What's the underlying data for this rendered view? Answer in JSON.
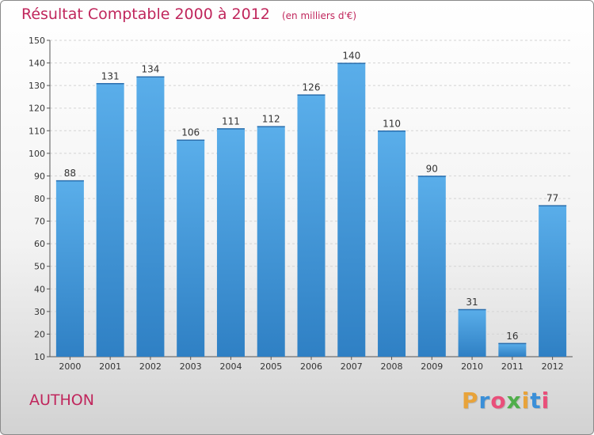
{
  "chart_data": {
    "type": "bar",
    "title": "Résultat Comptable 2000 à 2012",
    "subtitle": "(en milliers d'€)",
    "categories": [
      "2000",
      "2001",
      "2002",
      "2003",
      "2004",
      "2005",
      "2006",
      "2007",
      "2008",
      "2009",
      "2010",
      "2011",
      "2012"
    ],
    "values": [
      88,
      131,
      134,
      106,
      111,
      112,
      126,
      140,
      110,
      90,
      31,
      16,
      77
    ],
    "ylim": [
      10,
      150
    ],
    "yticks": [
      10,
      20,
      30,
      40,
      50,
      60,
      70,
      80,
      90,
      100,
      110,
      120,
      130,
      140,
      150
    ],
    "grid": true,
    "bar_color_top": "#5aaeea",
    "bar_color_bottom": "#2f80c4"
  },
  "footer": {
    "place": "AUTHON",
    "logo_letters": [
      "P",
      "r",
      "o",
      "x",
      "i",
      "t",
      "i"
    ],
    "logo_colors": [
      "#e8a33a",
      "#3a8fd8",
      "#e94f7a",
      "#4fae4a",
      "#e8a33a",
      "#3a8fd8",
      "#e94f7a"
    ]
  },
  "colors": {
    "accent": "#c0265c"
  }
}
